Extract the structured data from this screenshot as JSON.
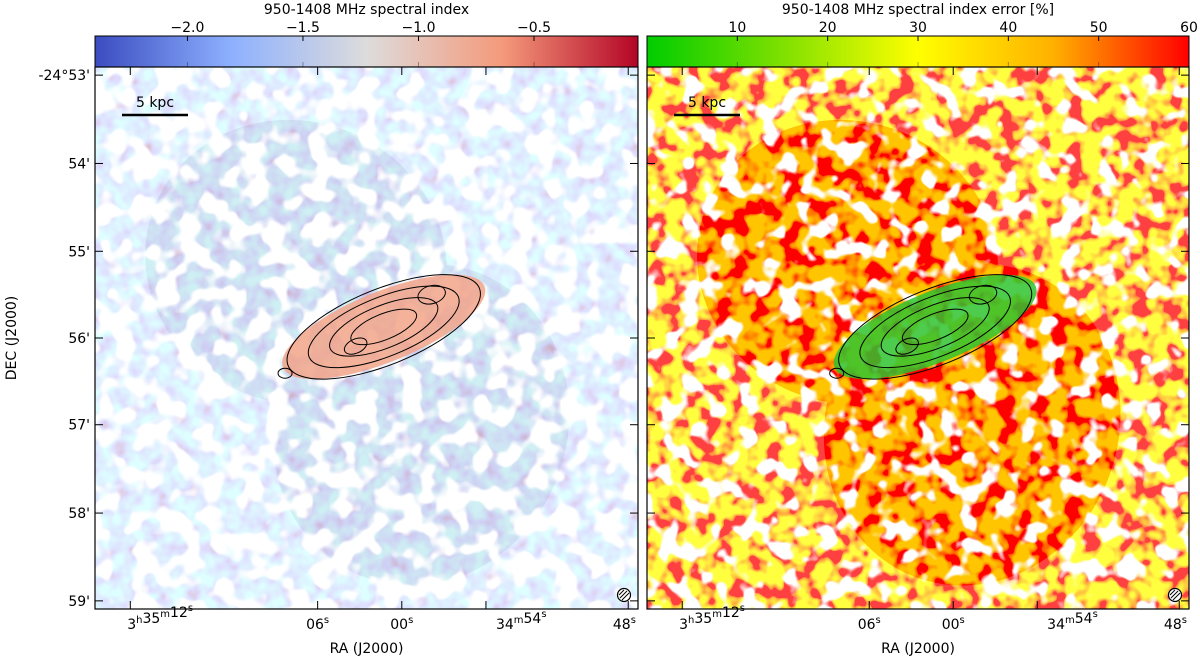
{
  "chart_data": [
    {
      "type": "heatmap",
      "colorbar": {
        "title": "950-1408 MHz spectral index",
        "range": [
          -2.4,
          -0.05
        ],
        "ticks": [
          -2.0,
          -1.5,
          -1.0,
          -0.5
        ],
        "tick_labels": [
          "−2.0",
          "−1.5",
          "−1.0",
          "−0.5"
        ],
        "colormap": [
          "#3b4cc0",
          "#8db0fe",
          "#dddcdc",
          "#f49a7b",
          "#b40426"
        ]
      },
      "xlabel": "RA (J2000)",
      "ylabel": "DEC (J2000)",
      "x_tick_labels": [
        {
          "h": "3",
          "hs": "h",
          "m": "35",
          "ms": "m",
          "s": "12",
          "ss": "s"
        },
        {
          "s": "06",
          "ss": "s"
        },
        {
          "s": "00",
          "ss": "s"
        },
        {
          "m": "34",
          "ms": "m",
          "s": "54",
          "ss": "s"
        },
        {
          "s": "48",
          "ss": "s"
        }
      ],
      "y_tick_labels": [
        "-24°53'",
        "54'",
        "55'",
        "56'",
        "57'",
        "58'",
        "59'"
      ],
      "scalebar_label": "5 kpc",
      "contour_levels": 4
    },
    {
      "type": "heatmap",
      "colorbar": {
        "title": "950-1408 MHz spectral index error [%]",
        "range": [
          0,
          60
        ],
        "ticks": [
          10,
          20,
          30,
          40,
          50,
          60
        ],
        "tick_labels": [
          "10",
          "20",
          "30",
          "40",
          "50",
          "60"
        ],
        "colormap": [
          "#00cc00",
          "#7fe000",
          "#ffff00",
          "#ffb000",
          "#ff0000"
        ]
      },
      "xlabel": "RA (J2000)",
      "x_tick_labels": [
        {
          "h": "3",
          "hs": "h",
          "m": "35",
          "ms": "m",
          "s": "12",
          "ss": "s"
        },
        {
          "s": "06",
          "ss": "s"
        },
        {
          "s": "00",
          "ss": "s"
        },
        {
          "m": "34",
          "ms": "m",
          "s": "54",
          "ss": "s"
        },
        {
          "s": "48",
          "ss": "s"
        }
      ],
      "scalebar_label": "5 kpc",
      "contour_levels": 4
    }
  ]
}
